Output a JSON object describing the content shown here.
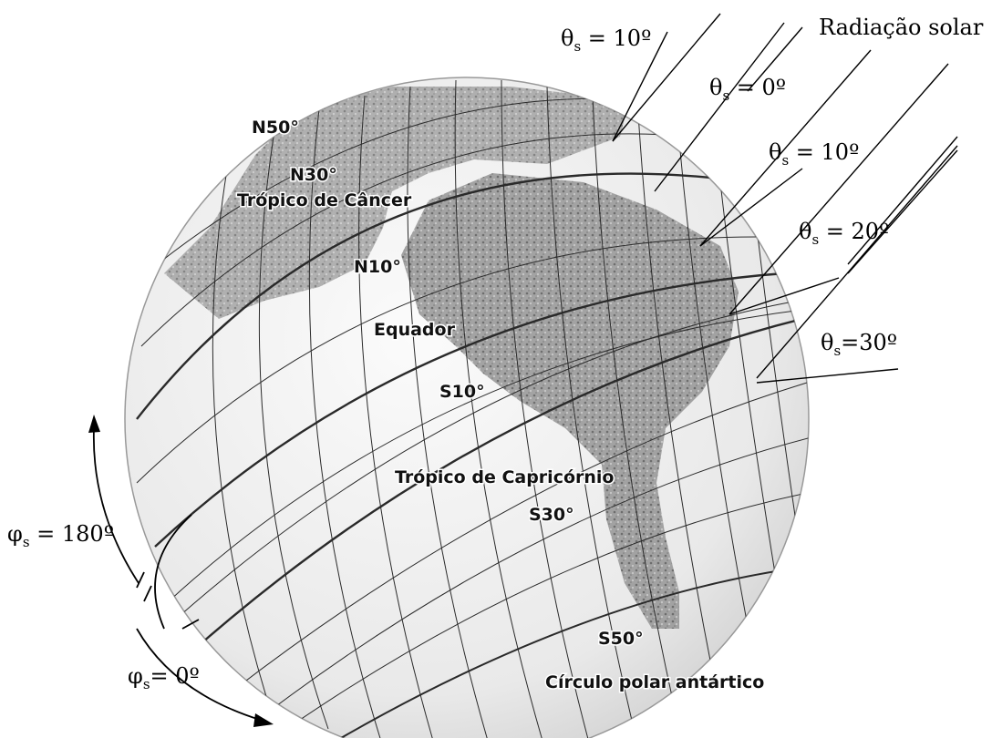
{
  "geo_labels": {
    "n50": "N50°",
    "n30": "N30°",
    "tropic_cancer": "Trópico de Câncer",
    "n10": "N10°",
    "equator": "Equador",
    "s10": "S10°",
    "tropic_capricorn": "Trópico de Capricórnio",
    "s30": "S30°",
    "s50": "S50°",
    "antarctic_circle": "Círculo polar antártico"
  },
  "sun": {
    "radiation_label": "Radiação solar",
    "theta_symbol": "θ",
    "phi_symbol": "φ",
    "subscript": "s",
    "zenith_angles": [
      {
        "value": "10º"
      },
      {
        "value": "0º"
      },
      {
        "value": "10º"
      },
      {
        "value": "20º"
      },
      {
        "value": "30º"
      }
    ],
    "azimuth_angles": [
      {
        "value": "180º"
      },
      {
        "value": "0º"
      }
    ]
  },
  "colors": {
    "background": "#ffffff",
    "land": "#8a8a8a",
    "ocean": "#ececec",
    "grid": "#2a2a2a",
    "ink": "#000000"
  }
}
